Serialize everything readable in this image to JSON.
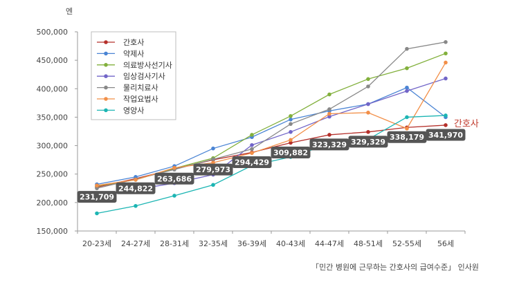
{
  "chart_data": {
    "type": "line",
    "ylabel": "엔",
    "ylim": [
      150000,
      500000
    ],
    "yticks": [
      150000,
      200000,
      250000,
      300000,
      350000,
      400000,
      450000,
      500000
    ],
    "ytick_labels": [
      "150,000",
      "200,000",
      "250,000",
      "300,000",
      "350,000",
      "400,000",
      "450,000",
      "500,000"
    ],
    "categories": [
      "20-23세",
      "24-27세",
      "28-31세",
      "32-35세",
      "36-39세",
      "40-43세",
      "44-47세",
      "48-51세",
      "52-55세",
      "56세"
    ],
    "grid": false,
    "legend_position": "top-left",
    "series": [
      {
        "name": "간호사",
        "color": "#b5302b",
        "values": [
          227000,
          242000,
          259000,
          275000,
          288000,
          305000,
          319000,
          324000,
          332000,
          336000
        ]
      },
      {
        "name": "약제사",
        "color": "#4a84d4",
        "values": [
          232000,
          245000,
          264000,
          295000,
          315000,
          346000,
          361000,
          373000,
          402000,
          350000
        ]
      },
      {
        "name": "의료방사선기사",
        "color": "#82b03c",
        "values": [
          229000,
          240000,
          260000,
          278000,
          319000,
          352000,
          390000,
          417000,
          436000,
          462000
        ]
      },
      {
        "name": "임상검사기사",
        "color": "#7165c8",
        "values": [
          209000,
          223000,
          234000,
          249000,
          301000,
          324000,
          351000,
          373000,
          396000,
          418000
        ]
      },
      {
        "name": "물리치료사",
        "color": "#888888",
        "values": [
          225000,
          241000,
          258000,
          276000,
          294000,
          338000,
          364000,
          404000,
          470000,
          482000
        ]
      },
      {
        "name": "작업요법사",
        "color": "#f28f48",
        "values": [
          230000,
          240000,
          261000,
          270000,
          287000,
          310000,
          356000,
          358000,
          330000,
          446000
        ]
      },
      {
        "name": "영양사",
        "color": "#1cb5b3",
        "values": [
          181000,
          194000,
          212000,
          231000,
          265000,
          280000,
          303000,
          311000,
          350000,
          353000
        ]
      }
    ],
    "data_labels": [
      "231,709",
      "244,822",
      "263,686",
      "279,973",
      "294,429",
      "309,882",
      "323,329",
      "329,329",
      "338,179",
      "341,970"
    ],
    "annotation": "간호사",
    "annotation_color": "#c0392b",
    "source": "「민간 병원에 근무하는 간호사의 급여수준」 인사원"
  }
}
